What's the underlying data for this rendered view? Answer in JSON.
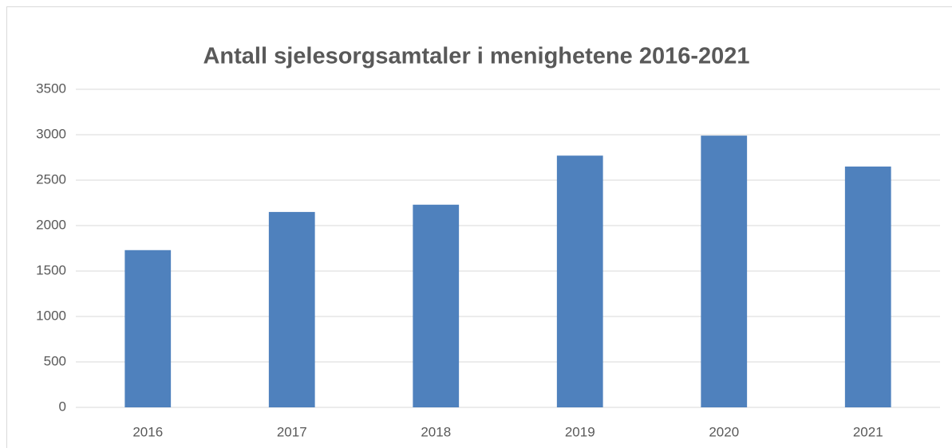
{
  "chart_data": {
    "type": "bar",
    "title": "Antall sjelesorgsamtaler i menighetene 2016-2021",
    "categories": [
      "2016",
      "2017",
      "2018",
      "2019",
      "2020",
      "2021"
    ],
    "values": [
      1730,
      2150,
      2230,
      2770,
      2990,
      2650
    ],
    "color": "#4f81bd",
    "ylim": [
      0,
      3500
    ],
    "yticks": [
      0,
      500,
      1000,
      1500,
      2000,
      2500,
      3000,
      3500
    ],
    "grid": true
  }
}
